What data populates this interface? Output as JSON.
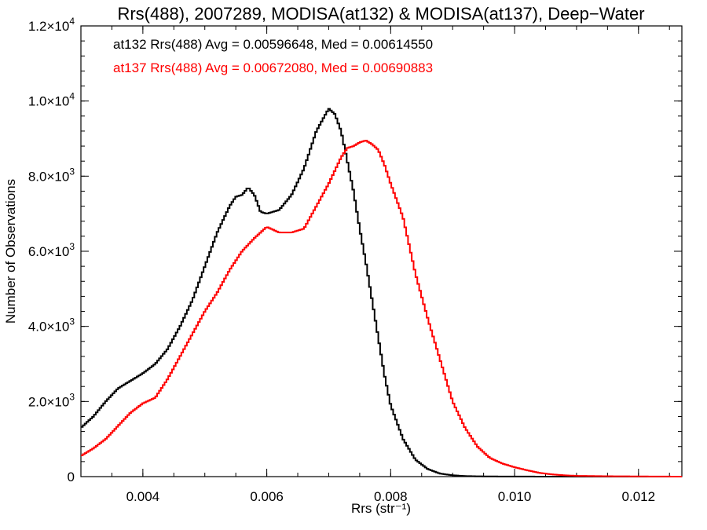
{
  "chart_data": {
    "type": "line",
    "title": "Rrs(488), 2007289, MODISA(at132) & MODISA(at137), Deep−Water",
    "xlabel": "Rrs (str⁻¹)",
    "ylabel": "Number of Observations",
    "xlim": [
      0.003,
      0.0127
    ],
    "ylim": [
      0,
      12000
    ],
    "x_ticks": [
      0.004,
      0.006,
      0.008,
      0.01,
      0.012
    ],
    "x_tick_labels": [
      "0.004",
      "0.006",
      "0.008",
      "0.010",
      "0.012"
    ],
    "y_ticks": [
      {
        "value": 0,
        "mantissa": "0",
        "exp": ""
      },
      {
        "value": 2000,
        "mantissa": "2.0×10",
        "exp": "3"
      },
      {
        "value": 4000,
        "mantissa": "4.0×10",
        "exp": "3"
      },
      {
        "value": 6000,
        "mantissa": "6.0×10",
        "exp": "3"
      },
      {
        "value": 8000,
        "mantissa": "8.0×10",
        "exp": "3"
      },
      {
        "value": 10000,
        "mantissa": "1.0×10",
        "exp": "4"
      },
      {
        "value": 12000,
        "mantissa": "1.2×10",
        "exp": "4"
      }
    ],
    "grid": false,
    "annotations": [
      {
        "text": "at132 Rrs(488) Avg = 0.00596648, Med = 0.00614550",
        "color": "#000000"
      },
      {
        "text": "at137 Rrs(488) Avg = 0.00672080, Med = 0.00690883",
        "color": "#ff0000"
      }
    ],
    "series": [
      {
        "color": "#000000",
        "x": [
          0.003,
          0.0032,
          0.0034,
          0.0036,
          0.0038,
          0.004,
          0.0042,
          0.0044,
          0.0046,
          0.0048,
          0.005,
          0.0052,
          0.0054,
          0.0055,
          0.0056,
          0.0057,
          0.0058,
          0.0059,
          0.006,
          0.0062,
          0.0064,
          0.0066,
          0.0068,
          0.0069,
          0.007,
          0.0071,
          0.0072,
          0.0073,
          0.0074,
          0.0075,
          0.0076,
          0.0077,
          0.0078,
          0.0079,
          0.008,
          0.0082,
          0.0084,
          0.0086,
          0.0088,
          0.009,
          0.0092,
          0.0094,
          0.0096,
          0.0098,
          0.01,
          0.011
        ],
        "y": [
          1300,
          1600,
          2000,
          2350,
          2550,
          2750,
          3000,
          3400,
          4000,
          4700,
          5600,
          6500,
          7200,
          7450,
          7500,
          7700,
          7500,
          7050,
          7000,
          7100,
          7500,
          8200,
          9200,
          9500,
          9800,
          9650,
          9200,
          8400,
          7600,
          6600,
          5700,
          4700,
          3700,
          2700,
          1900,
          1000,
          450,
          200,
          80,
          35,
          15,
          8,
          5,
          3,
          2,
          0
        ]
      },
      {
        "color": "#ff0000",
        "x": [
          0.003,
          0.0032,
          0.0034,
          0.0036,
          0.0038,
          0.004,
          0.0042,
          0.0044,
          0.0046,
          0.0048,
          0.005,
          0.0052,
          0.0054,
          0.0056,
          0.0058,
          0.006,
          0.0062,
          0.0064,
          0.0066,
          0.0068,
          0.007,
          0.0072,
          0.0073,
          0.0074,
          0.0075,
          0.0076,
          0.0077,
          0.0078,
          0.0079,
          0.008,
          0.0082,
          0.0084,
          0.0086,
          0.0088,
          0.009,
          0.0092,
          0.0094,
          0.0096,
          0.0098,
          0.01,
          0.0102,
          0.0104,
          0.0106,
          0.0108,
          0.011,
          0.0115,
          0.012,
          0.0127
        ],
        "y": [
          550,
          750,
          1000,
          1350,
          1700,
          1950,
          2100,
          2600,
          3200,
          3800,
          4400,
          4900,
          5500,
          6000,
          6350,
          6650,
          6500,
          6500,
          6600,
          7200,
          7800,
          8500,
          8750,
          8800,
          8900,
          8950,
          8850,
          8700,
          8300,
          7800,
          6900,
          5400,
          4200,
          3100,
          2000,
          1300,
          800,
          500,
          350,
          250,
          170,
          100,
          60,
          35,
          20,
          10,
          5,
          0
        ]
      }
    ]
  }
}
